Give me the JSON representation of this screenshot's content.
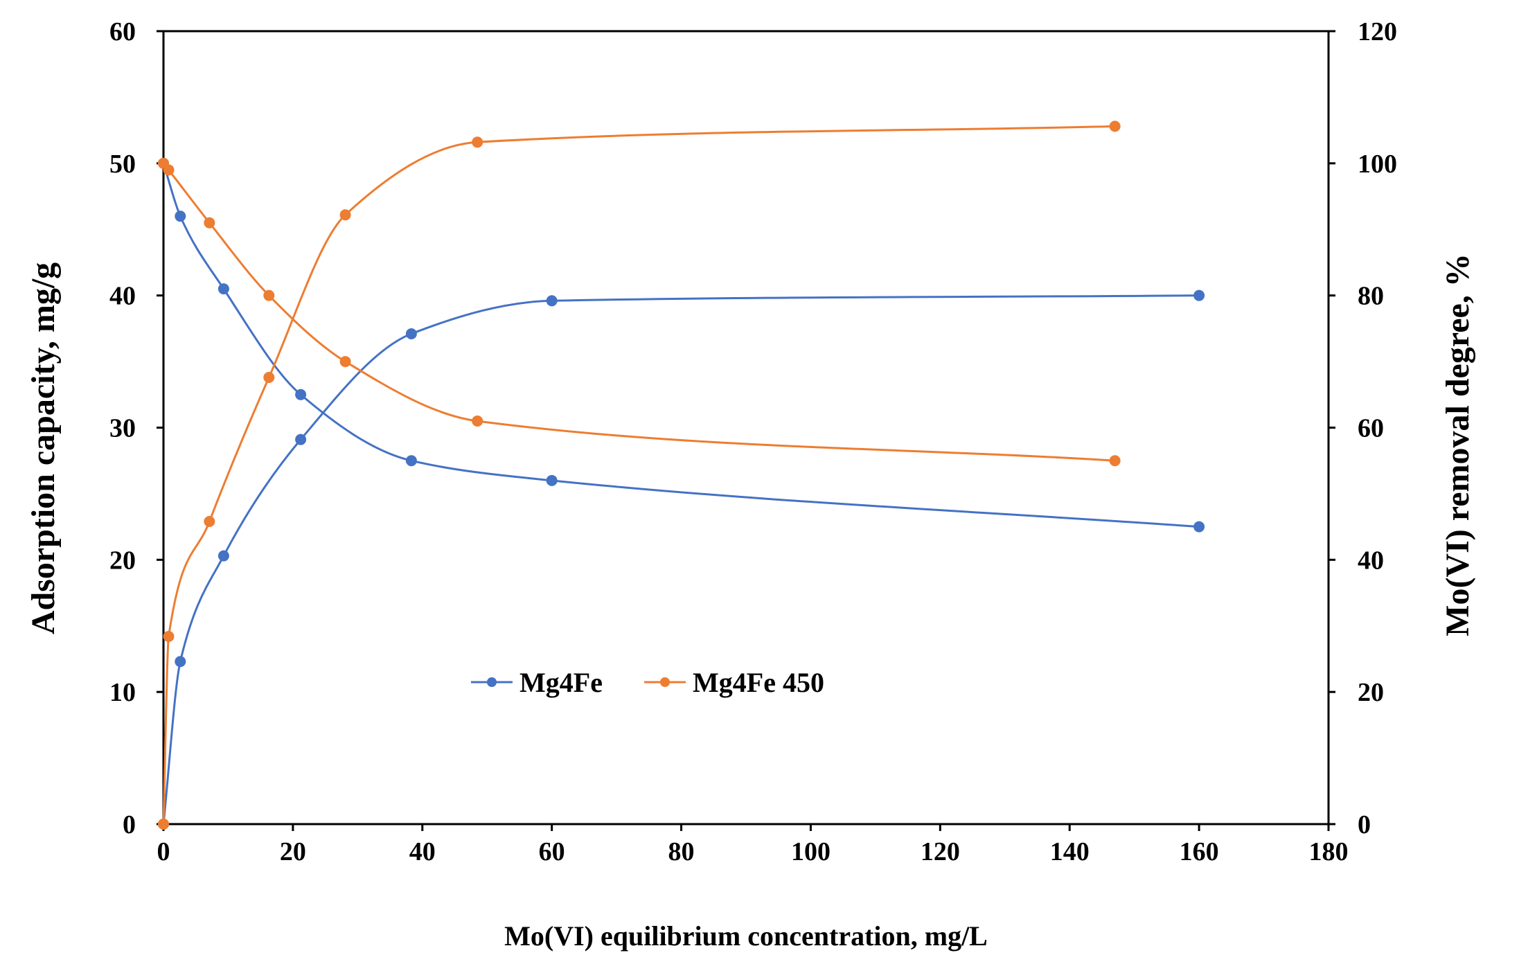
{
  "chart_data": {
    "type": "scatter",
    "title": "",
    "xlabel": "Mo(VI) equilibrium concentration, mg/L",
    "ylabel_left": "Adsorption capacity, mg/g",
    "ylabel_right": "Mo(VI) removal degree, %",
    "xlim": [
      0,
      180
    ],
    "ylim_left": [
      0,
      60
    ],
    "ylim_right": [
      0,
      120
    ],
    "x_ticks": [
      "0",
      "20",
      "40",
      "60",
      "80",
      "100",
      "120",
      "140",
      "160",
      "180"
    ],
    "y_left_ticks": [
      "0",
      "10",
      "20",
      "30",
      "40",
      "50",
      "60"
    ],
    "y_right_ticks": [
      "0",
      "20",
      "40",
      "60",
      "80",
      "100",
      "120"
    ],
    "grid": false,
    "legend_position": "center-left",
    "series": [
      {
        "name": "Mg4Fe",
        "color": "#4472C4",
        "axis": "left",
        "metric": "adsorption capacity",
        "x": [
          0,
          2.6,
          9.3,
          21.2,
          38.3,
          60,
          160
        ],
        "y": [
          0,
          12.3,
          20.3,
          29.1,
          37.1,
          39.6,
          40
        ]
      },
      {
        "name": "Mg4Fe",
        "color": "#4472C4",
        "axis": "right",
        "metric": "removal degree",
        "x": [
          0,
          2.6,
          9.3,
          21.2,
          38.3,
          60,
          160
        ],
        "y": [
          100,
          92,
          81,
          65,
          55,
          52,
          45
        ]
      },
      {
        "name": "Mg4Fe 450",
        "color": "#ED7D31",
        "axis": "left",
        "metric": "adsorption capacity",
        "x": [
          0,
          0.8,
          7.1,
          16.3,
          28.1,
          48.5,
          147
        ],
        "y": [
          0,
          14.2,
          22.9,
          33.8,
          46.1,
          51.6,
          52.8
        ]
      },
      {
        "name": "Mg4Fe 450",
        "color": "#ED7D31",
        "axis": "right",
        "metric": "removal degree",
        "x": [
          0,
          0.8,
          7.1,
          16.3,
          28.1,
          48.5,
          147
        ],
        "y": [
          100,
          99,
          91,
          80,
          70,
          61,
          55
        ]
      }
    ]
  },
  "legend": {
    "items": [
      {
        "label": "Mg4Fe",
        "color": "#4472C4"
      },
      {
        "label": "Mg4Fe 450",
        "color": "#ED7D31"
      }
    ]
  }
}
